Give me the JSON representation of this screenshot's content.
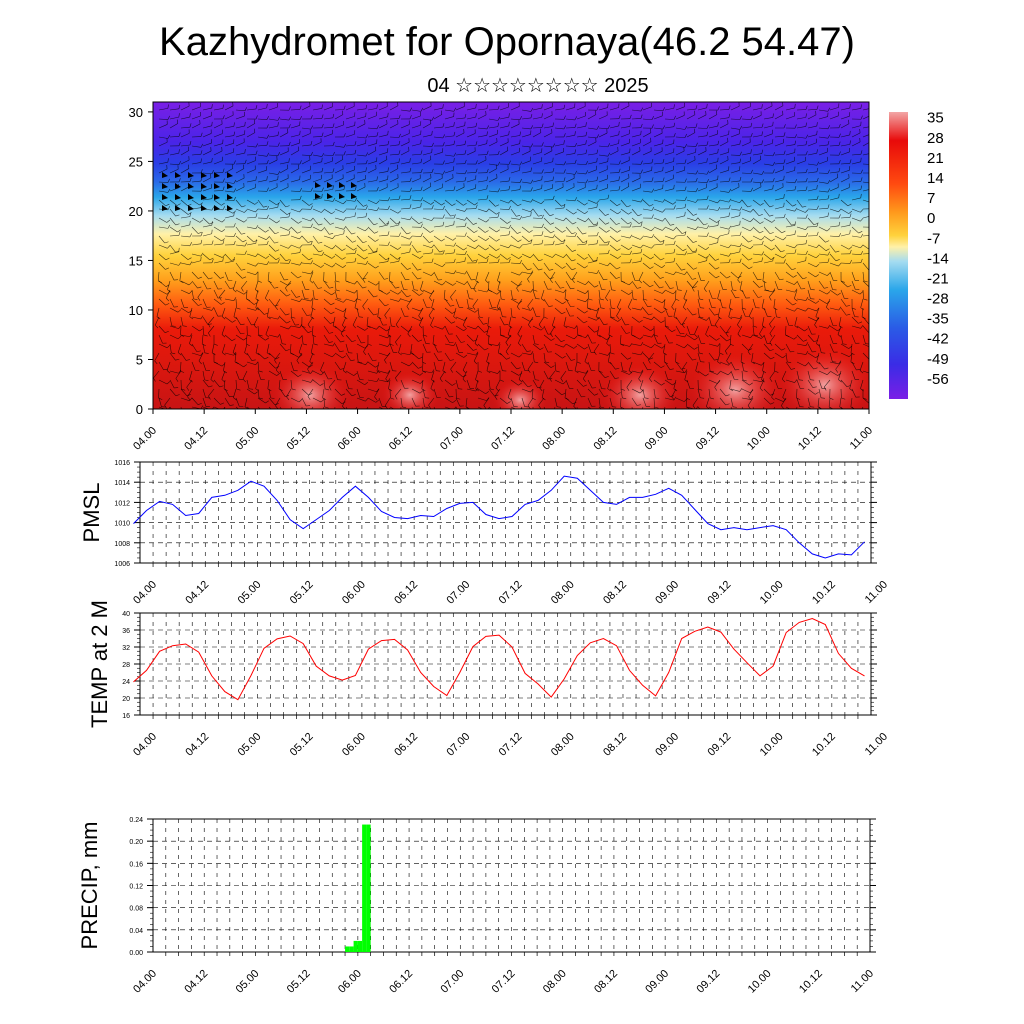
{
  "header": {
    "title": "Kazhydromet for Opornaya(46.2 54.47)",
    "subtitle": "04 ☆☆☆☆☆☆☆☆ 2025"
  },
  "colors": {
    "pmsl_line": "#0000ff",
    "temp_line": "#ff0000",
    "precip_bar": "#00ff00",
    "cross_section_palette": [
      "#7a1fe6",
      "#3a2ce6",
      "#2a5ce6",
      "#2aa6ea",
      "#a6dcf0",
      "#fff1a8",
      "#ffd23c",
      "#ff9a1c",
      "#ff4a10",
      "#e80a0a",
      "#c81414",
      "#f2a6a6"
    ]
  },
  "chart_data": [
    {
      "type": "heatmap",
      "y_ticks": [
        "0",
        "5",
        "10",
        "15",
        "20",
        "25",
        "30"
      ],
      "ylim": [
        0,
        31
      ],
      "x_ticks": [
        "04.00",
        "04.12",
        "05.00",
        "05.12",
        "06.00",
        "06.12",
        "07.00",
        "07.12",
        "08.00",
        "08.12",
        "09.00",
        "09.12",
        "10.00",
        "10.12",
        "11.00"
      ],
      "colorbar_labels": [
        "35",
        "28",
        "21",
        "14",
        "7",
        "0",
        "-7",
        "-14",
        "-21",
        "-28",
        "-35",
        "-42",
        "-49",
        "-56"
      ],
      "colorbar_range": [
        -63,
        37
      ],
      "grid": false,
      "wind_barbs": true
    },
    {
      "type": "line",
      "ylabel": "PMSL",
      "ylim": [
        1006,
        1016
      ],
      "y_ticks": [
        "1006",
        "1008",
        "1010",
        "1012",
        "1014",
        "1016"
      ],
      "x_ticks": [
        "04.00",
        "04.12",
        "05.00",
        "05.12",
        "06.00",
        "06.12",
        "07.00",
        "07.12",
        "08.00",
        "08.12",
        "09.00",
        "09.12",
        "10.00",
        "10.12",
        "11.00"
      ],
      "x_step_hours": 3,
      "values": [
        1009.9,
        1011.2,
        1012.1,
        1011.8,
        1010.7,
        1010.9,
        1012.5,
        1012.7,
        1013.2,
        1014.1,
        1013.6,
        1012.2,
        1010.3,
        1009.4,
        1010.3,
        1011.2,
        1012.5,
        1013.6,
        1012.5,
        1011.1,
        1010.5,
        1010.4,
        1010.7,
        1010.6,
        1011.4,
        1011.9,
        1012.0,
        1010.8,
        1010.4,
        1010.6,
        1011.8,
        1012.2,
        1013.2,
        1014.6,
        1014.4,
        1013.2,
        1012.0,
        1011.8,
        1012.5,
        1012.5,
        1012.8,
        1013.4,
        1012.7,
        1011.3,
        1009.9,
        1009.3,
        1009.5,
        1009.3,
        1009.5,
        1009.7,
        1009.3,
        1008.0,
        1006.9,
        1006.5,
        1006.9,
        1006.8,
        1008.1
      ],
      "grid": true
    },
    {
      "type": "line",
      "ylabel": "TEMP at 2 M",
      "ylim": [
        16,
        40
      ],
      "y_ticks": [
        "16",
        "20",
        "24",
        "28",
        "32",
        "36",
        "40"
      ],
      "x_ticks": [
        "04.00",
        "04.12",
        "05.00",
        "05.12",
        "06.00",
        "06.12",
        "07.00",
        "07.12",
        "08.00",
        "08.12",
        "09.00",
        "09.12",
        "10.00",
        "10.12",
        "11.00"
      ],
      "x_step_hours": 3,
      "values": [
        23.8,
        26.5,
        31.0,
        32.3,
        32.7,
        30.8,
        25.2,
        21.5,
        19.6,
        25.3,
        31.7,
        33.9,
        34.6,
        32.8,
        27.5,
        25.2,
        24.2,
        25.3,
        31.5,
        33.5,
        33.8,
        31.3,
        26.0,
        22.7,
        20.6,
        26.0,
        32.1,
        34.5,
        34.8,
        32.0,
        25.8,
        23.3,
        20.2,
        24.5,
        30.0,
        33.0,
        34.0,
        32.3,
        26.5,
        23.0,
        20.5,
        26.0,
        34.0,
        35.7,
        36.7,
        35.5,
        31.5,
        28.3,
        25.2,
        27.5,
        35.4,
        37.8,
        38.7,
        37.3,
        30.5,
        27.0,
        25.2
      ],
      "grid": true
    },
    {
      "type": "bar",
      "ylabel": "PRECIP, mm",
      "ylim": [
        0,
        0.24
      ],
      "y_ticks": [
        "0.00",
        "0.04",
        "0.08",
        "0.12",
        "0.16",
        "0.20",
        "0.24"
      ],
      "x_ticks": [
        "04.00",
        "04.12",
        "05.00",
        "05.12",
        "06.00",
        "06.12",
        "07.00",
        "07.12",
        "08.00",
        "08.12",
        "09.00",
        "09.12",
        "10.00",
        "10.12",
        "11.00"
      ],
      "bars": [
        {
          "hour": 45,
          "value": 0.01
        },
        {
          "hour": 46,
          "value": 0.01
        },
        {
          "hour": 47,
          "value": 0.02
        },
        {
          "hour": 48,
          "value": 0.02
        },
        {
          "hour": 49,
          "value": 0.23
        },
        {
          "hour": 50,
          "value": 0.23
        }
      ],
      "grid": true
    }
  ]
}
